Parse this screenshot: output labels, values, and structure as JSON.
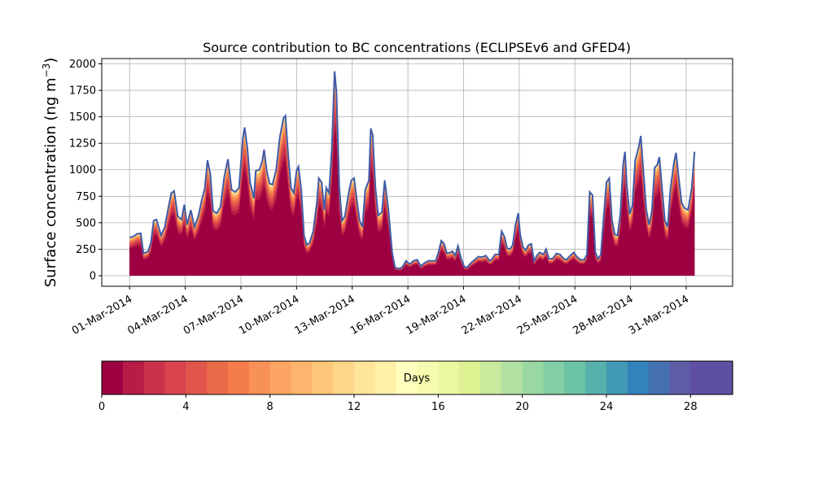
{
  "chart_data": {
    "type": "area",
    "title": "Source contribution to BC concentrations (ECLIPSEv6 and GFED4)",
    "ylabel": "Surface concentration (ng m",
    "ylabel_unit_sup": "−3",
    "ylabel_close": ")",
    "xlabel": "",
    "ylim": [
      -100,
      2050
    ],
    "xlim": [
      -1.5,
      32.5
    ],
    "yticks": [
      0,
      250,
      500,
      750,
      1000,
      1250,
      1500,
      1750,
      2000
    ],
    "xtick_positions": [
      0,
      3,
      6,
      9,
      12,
      15,
      18,
      21,
      24,
      27,
      30
    ],
    "xtick_labels": [
      "01-Mar-2014",
      "04-Mar-2014",
      "07-Mar-2014",
      "10-Mar-2014",
      "13-Mar-2014",
      "16-Mar-2014",
      "19-Mar-2014",
      "22-Mar-2014",
      "25-Mar-2014",
      "28-Mar-2014",
      "31-Mar-2014"
    ],
    "grid": true,
    "x_unit": "days since 01-Mar-2014",
    "total_series": [
      [
        0.0,
        360
      ],
      [
        0.2,
        370
      ],
      [
        0.4,
        395
      ],
      [
        0.6,
        400
      ],
      [
        0.75,
        210
      ],
      [
        1.0,
        230
      ],
      [
        1.15,
        310
      ],
      [
        1.3,
        520
      ],
      [
        1.45,
        530
      ],
      [
        1.7,
        380
      ],
      [
        1.9,
        460
      ],
      [
        2.1,
        650
      ],
      [
        2.25,
        780
      ],
      [
        2.4,
        800
      ],
      [
        2.6,
        560
      ],
      [
        2.8,
        530
      ],
      [
        2.95,
        670
      ],
      [
        3.1,
        480
      ],
      [
        3.3,
        620
      ],
      [
        3.5,
        460
      ],
      [
        3.7,
        560
      ],
      [
        3.9,
        720
      ],
      [
        4.05,
        820
      ],
      [
        4.2,
        1090
      ],
      [
        4.35,
        960
      ],
      [
        4.5,
        610
      ],
      [
        4.7,
        590
      ],
      [
        4.9,
        650
      ],
      [
        5.1,
        930
      ],
      [
        5.3,
        1100
      ],
      [
        5.5,
        810
      ],
      [
        5.7,
        790
      ],
      [
        5.9,
        830
      ],
      [
        6.1,
        1290
      ],
      [
        6.2,
        1400
      ],
      [
        6.35,
        1200
      ],
      [
        6.5,
        880
      ],
      [
        6.7,
        730
      ],
      [
        6.8,
        990
      ],
      [
        7.0,
        1000
      ],
      [
        7.15,
        1080
      ],
      [
        7.25,
        1190
      ],
      [
        7.4,
        980
      ],
      [
        7.55,
        870
      ],
      [
        7.7,
        860
      ],
      [
        7.9,
        1000
      ],
      [
        8.1,
        1310
      ],
      [
        8.3,
        1490
      ],
      [
        8.4,
        1510
      ],
      [
        8.55,
        1140
      ],
      [
        8.7,
        830
      ],
      [
        8.85,
        780
      ],
      [
        9.0,
        990
      ],
      [
        9.1,
        1030
      ],
      [
        9.25,
        820
      ],
      [
        9.4,
        380
      ],
      [
        9.55,
        290
      ],
      [
        9.7,
        310
      ],
      [
        9.9,
        420
      ],
      [
        10.1,
        700
      ],
      [
        10.2,
        920
      ],
      [
        10.35,
        880
      ],
      [
        10.5,
        620
      ],
      [
        10.6,
        830
      ],
      [
        10.75,
        780
      ],
      [
        10.9,
        1200
      ],
      [
        11.05,
        1930
      ],
      [
        11.15,
        1730
      ],
      [
        11.3,
        840
      ],
      [
        11.45,
        520
      ],
      [
        11.6,
        560
      ],
      [
        11.8,
        770
      ],
      [
        11.95,
        900
      ],
      [
        12.1,
        920
      ],
      [
        12.25,
        710
      ],
      [
        12.4,
        520
      ],
      [
        12.55,
        460
      ],
      [
        12.7,
        810
      ],
      [
        12.9,
        900
      ],
      [
        13.0,
        1390
      ],
      [
        13.1,
        1330
      ],
      [
        13.25,
        830
      ],
      [
        13.4,
        570
      ],
      [
        13.6,
        600
      ],
      [
        13.75,
        900
      ],
      [
        13.95,
        620
      ],
      [
        14.15,
        220
      ],
      [
        14.3,
        80
      ],
      [
        14.5,
        65
      ],
      [
        14.7,
        80
      ],
      [
        14.9,
        140
      ],
      [
        15.1,
        110
      ],
      [
        15.3,
        140
      ],
      [
        15.5,
        150
      ],
      [
        15.7,
        90
      ],
      [
        15.9,
        120
      ],
      [
        16.1,
        140
      ],
      [
        16.3,
        140
      ],
      [
        16.5,
        140
      ],
      [
        16.65,
        220
      ],
      [
        16.8,
        330
      ],
      [
        16.95,
        300
      ],
      [
        17.1,
        210
      ],
      [
        17.3,
        220
      ],
      [
        17.4,
        230
      ],
      [
        17.55,
        190
      ],
      [
        17.7,
        280
      ],
      [
        17.85,
        170
      ],
      [
        18.05,
        80
      ],
      [
        18.2,
        80
      ],
      [
        18.4,
        120
      ],
      [
        18.6,
        150
      ],
      [
        18.8,
        180
      ],
      [
        19.0,
        175
      ],
      [
        19.2,
        190
      ],
      [
        19.4,
        140
      ],
      [
        19.55,
        160
      ],
      [
        19.7,
        200
      ],
      [
        19.9,
        200
      ],
      [
        20.05,
        420
      ],
      [
        20.2,
        370
      ],
      [
        20.35,
        260
      ],
      [
        20.5,
        250
      ],
      [
        20.65,
        290
      ],
      [
        20.8,
        480
      ],
      [
        20.95,
        590
      ],
      [
        21.05,
        390
      ],
      [
        21.2,
        270
      ],
      [
        21.35,
        240
      ],
      [
        21.5,
        290
      ],
      [
        21.65,
        300
      ],
      [
        21.8,
        140
      ],
      [
        21.95,
        190
      ],
      [
        22.1,
        220
      ],
      [
        22.3,
        200
      ],
      [
        22.45,
        250
      ],
      [
        22.6,
        160
      ],
      [
        22.8,
        160
      ],
      [
        23.0,
        210
      ],
      [
        23.2,
        200
      ],
      [
        23.4,
        160
      ],
      [
        23.55,
        150
      ],
      [
        23.75,
        190
      ],
      [
        23.95,
        220
      ],
      [
        24.1,
        180
      ],
      [
        24.3,
        150
      ],
      [
        24.5,
        150
      ],
      [
        24.65,
        200
      ],
      [
        24.8,
        790
      ],
      [
        24.95,
        760
      ],
      [
        25.1,
        220
      ],
      [
        25.25,
        160
      ],
      [
        25.4,
        200
      ],
      [
        25.55,
        550
      ],
      [
        25.7,
        880
      ],
      [
        25.85,
        920
      ],
      [
        26.0,
        520
      ],
      [
        26.15,
        390
      ],
      [
        26.3,
        380
      ],
      [
        26.45,
        580
      ],
      [
        26.6,
        1050
      ],
      [
        26.7,
        1170
      ],
      [
        26.8,
        850
      ],
      [
        26.95,
        580
      ],
      [
        27.1,
        660
      ],
      [
        27.25,
        1090
      ],
      [
        27.45,
        1220
      ],
      [
        27.55,
        1320
      ],
      [
        27.7,
        970
      ],
      [
        27.85,
        620
      ],
      [
        28.0,
        480
      ],
      [
        28.15,
        610
      ],
      [
        28.3,
        1020
      ],
      [
        28.45,
        1050
      ],
      [
        28.55,
        1120
      ],
      [
        28.7,
        820
      ],
      [
        28.85,
        520
      ],
      [
        29.0,
        460
      ],
      [
        29.15,
        820
      ],
      [
        29.35,
        1080
      ],
      [
        29.45,
        1160
      ],
      [
        29.6,
        920
      ],
      [
        29.75,
        690
      ],
      [
        29.9,
        640
      ],
      [
        30.1,
        620
      ],
      [
        30.3,
        830
      ],
      [
        30.45,
        1170
      ]
    ]
  },
  "colorbar": {
    "label": "Days",
    "ticks": [
      "0",
      "4",
      "8",
      "12",
      "16",
      "20",
      "24",
      "28"
    ],
    "tick_values": [
      0,
      4,
      8,
      12,
      16,
      20,
      24,
      28
    ],
    "range": [
      0,
      30
    ],
    "segments": 30,
    "colors": [
      "#9e0142",
      "#b51d47",
      "#c9314c",
      "#d8434e",
      "#e1564c",
      "#ea6b4a",
      "#f47c4a",
      "#f89157",
      "#fca463",
      "#fdb46d",
      "#fdc678",
      "#fdd789",
      "#fee59a",
      "#fff0a8",
      "#ffffbe",
      "#f7fbaf",
      "#ecf8a1",
      "#dff293",
      "#c9e99d",
      "#b2e0a2",
      "#9ad8a3",
      "#83cea4",
      "#6cc4a5",
      "#57b0ab",
      "#4199b4",
      "#3282bd",
      "#4570b1",
      "#5e5ca7",
      "#5e4fa2",
      "#5e4fa2"
    ]
  }
}
